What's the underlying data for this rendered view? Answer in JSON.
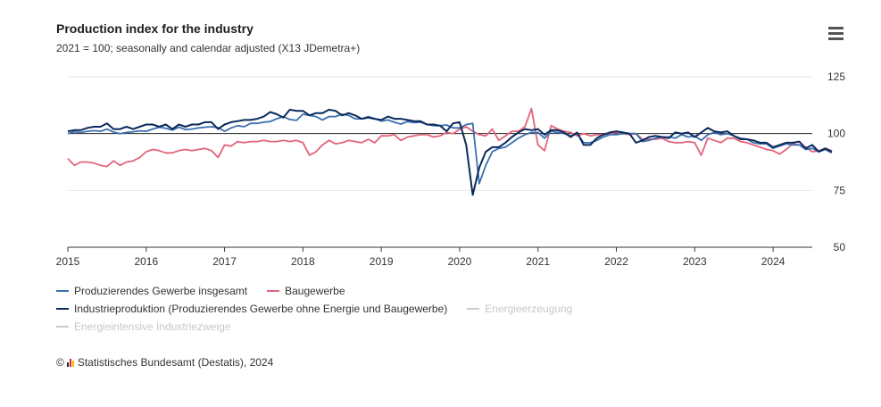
{
  "header": {
    "title": "Production index for the industry",
    "subtitle": "2021 = 100; seasonally and calendar adjusted (X13 JDemetra+)"
  },
  "menu": {
    "icon": "hamburger-menu-icon"
  },
  "credits": {
    "copyright": "©",
    "text": "Statistisches Bundesamt (Destatis), 2024"
  },
  "colors": {
    "gesamt": "#3b6fb0",
    "bau": "#e3647a",
    "industrie": "#0b2a5b",
    "hidden": "#cccccc",
    "grid": "#e6e6e6",
    "refline": "#222222"
  },
  "chart_data": {
    "type": "line",
    "title": "Production index for the industry",
    "subtitle": "2021 = 100; seasonally and calendar adjusted (X13 JDemetra+)",
    "xlabel": "",
    "ylabel": "",
    "xlim": [
      "2015-01",
      "2024-07"
    ],
    "ylim": [
      50,
      125
    ],
    "yticks": [
      "50",
      "75",
      "100",
      "125"
    ],
    "xticks": [
      "2015",
      "2016",
      "2017",
      "2018",
      "2019",
      "2020",
      "2021",
      "2022",
      "2023",
      "2024"
    ],
    "reference_line": 100,
    "grid": true,
    "legend_position": "bottom-left",
    "series": [
      {
        "name": "Produzierendes Gewerbe insgesamt",
        "key": "gesamt",
        "visible": true,
        "values": [
          100.0,
          100.8,
          100.5,
          101.0,
          101.3,
          101.0,
          102.0,
          100.6,
          100.0,
          100.5,
          100.8,
          101.2,
          101.0,
          102.0,
          102.8,
          102.3,
          101.5,
          102.8,
          101.8,
          102.0,
          102.5,
          102.8,
          103.0,
          102.6,
          101.0,
          102.5,
          103.5,
          103.0,
          104.5,
          104.5,
          105.0,
          105.3,
          106.5,
          107.5,
          106.2,
          105.8,
          108.5,
          108.0,
          107.5,
          106.0,
          107.5,
          107.5,
          108.5,
          108.0,
          106.5,
          106.5,
          107.5,
          106.6,
          105.5,
          106.0,
          105.0,
          104.2,
          105.3,
          104.8,
          105.0,
          104.0,
          103.5,
          103.5,
          103.8,
          102.5,
          102.5,
          104.0,
          104.5,
          78.0,
          86.0,
          92.0,
          93.5,
          94.0,
          96.0,
          98.0,
          99.5,
          100.5,
          100.5,
          98.0,
          101.0,
          100.5,
          100.0,
          99.0,
          100.0,
          96.0,
          96.0,
          97.0,
          98.5,
          99.5,
          99.5,
          100.0,
          100.0,
          100.0,
          96.5,
          97.0,
          98.0,
          98.5,
          98.5,
          98.0,
          99.5,
          98.5,
          99.0,
          97.0,
          99.5,
          100.5,
          99.5,
          100.0,
          99.0,
          98.0,
          97.5,
          96.0,
          95.5,
          95.5,
          93.5,
          94.5,
          95.5,
          95.0,
          95.0,
          93.0,
          93.5,
          92.0,
          93.0,
          91.5
        ]
      },
      {
        "name": "Baugewerbe",
        "key": "bau",
        "visible": true,
        "values": [
          89.0,
          86.0,
          87.5,
          87.5,
          87.0,
          86.0,
          85.5,
          88.0,
          86.0,
          87.5,
          88.0,
          89.5,
          92.0,
          93.0,
          92.5,
          91.5,
          91.5,
          92.5,
          93.0,
          92.5,
          93.0,
          93.5,
          92.5,
          89.5,
          95.0,
          94.5,
          96.5,
          96.0,
          96.5,
          96.5,
          97.0,
          96.5,
          96.5,
          97.0,
          96.5,
          97.0,
          96.0,
          90.5,
          92.0,
          95.0,
          97.0,
          95.5,
          96.0,
          97.0,
          96.5,
          96.0,
          97.5,
          96.0,
          99.0,
          99.0,
          99.5,
          97.0,
          98.5,
          99.0,
          99.5,
          99.5,
          98.5,
          99.0,
          100.5,
          100.0,
          102.0,
          103.0,
          101.0,
          99.5,
          99.0,
          102.0,
          97.0,
          99.0,
          101.0,
          101.0,
          103.0,
          111.0,
          95.0,
          92.5,
          103.5,
          102.0,
          101.0,
          100.5,
          99.0,
          100.0,
          99.0,
          99.5,
          99.5,
          100.0,
          100.5,
          100.0,
          99.5,
          100.0,
          97.5,
          97.5,
          97.5,
          98.0,
          96.5,
          96.0,
          96.0,
          96.5,
          96.0,
          90.5,
          98.0,
          97.0,
          96.0,
          98.0,
          98.0,
          96.5,
          96.0,
          95.0,
          94.0,
          93.0,
          92.5,
          91.0,
          93.0,
          95.5,
          95.0,
          94.0,
          92.0,
          92.5,
          93.5,
          92.5
        ]
      },
      {
        "name": "Industrieproduktion (Produzierendes Gewerbe ohne Energie und Baugewerbe)",
        "key": "industrie",
        "visible": true,
        "values": [
          101.0,
          101.5,
          101.5,
          102.5,
          103.0,
          103.0,
          104.5,
          102.0,
          102.0,
          103.0,
          102.0,
          103.0,
          104.0,
          104.0,
          103.0,
          104.0,
          102.0,
          104.0,
          103.0,
          104.0,
          104.0,
          105.0,
          105.0,
          102.0,
          104.0,
          105.0,
          105.5,
          106.0,
          106.0,
          106.5,
          107.5,
          109.5,
          108.5,
          107.0,
          110.5,
          110.0,
          110.0,
          108.0,
          109.0,
          109.0,
          110.5,
          110.0,
          108.0,
          109.0,
          108.0,
          106.5,
          107.0,
          106.5,
          106.0,
          107.5,
          106.5,
          106.5,
          106.0,
          105.5,
          105.5,
          104.0,
          104.0,
          103.5,
          101.0,
          104.5,
          105.0,
          95.0,
          73.0,
          85.0,
          92.0,
          94.0,
          94.0,
          96.0,
          98.5,
          100.5,
          102.0,
          101.5,
          102.0,
          99.5,
          101.5,
          101.5,
          100.5,
          98.5,
          100.5,
          95.0,
          95.0,
          98.0,
          99.5,
          100.5,
          101.0,
          100.5,
          100.0,
          96.0,
          97.0,
          98.5,
          99.0,
          98.5,
          98.0,
          100.5,
          100.0,
          100.5,
          98.5,
          100.5,
          102.5,
          101.0,
          100.5,
          101.0,
          99.0,
          97.5,
          97.5,
          97.0,
          96.0,
          96.0,
          94.0,
          95.0,
          96.0,
          96.0,
          96.5,
          93.5,
          95.0,
          92.0,
          93.5,
          92.0
        ]
      },
      {
        "name": "Energieerzeugung",
        "key": "energie",
        "visible": false,
        "values": []
      },
      {
        "name": "Energieintensive Industriezweige",
        "key": "energieintensiv",
        "visible": false,
        "values": []
      }
    ]
  }
}
